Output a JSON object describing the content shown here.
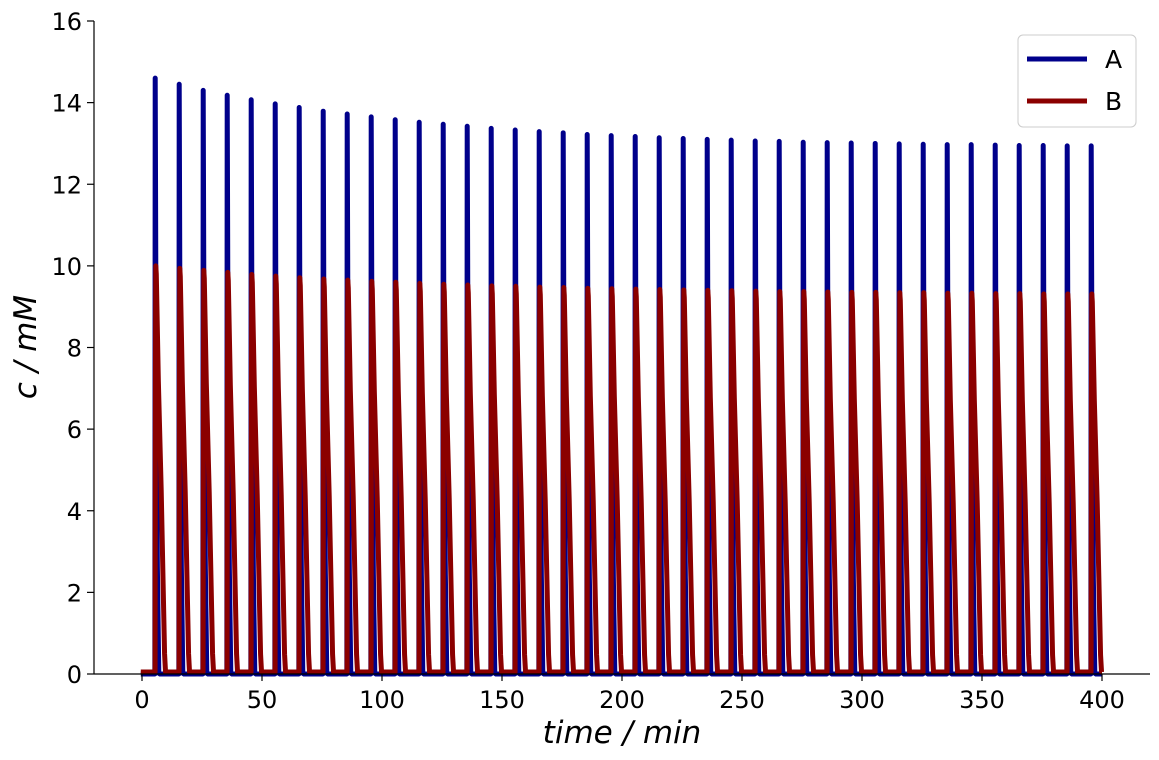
{
  "chart_data": {
    "type": "line",
    "title": "",
    "xlabel": "time / min",
    "ylabel": "c / mM",
    "xlim": [
      -20,
      420
    ],
    "ylim": [
      0,
      16
    ],
    "xticks": [
      0,
      50,
      100,
      150,
      200,
      250,
      300,
      350,
      400
    ],
    "yticks": [
      0,
      2,
      4,
      6,
      8,
      10,
      12,
      14,
      16
    ],
    "legend_position": "top-right",
    "grid": false,
    "series": [
      {
        "name": "A",
        "color": "#00008B",
        "pulse_times": [
          5.5,
          15.5,
          25.5,
          35.5,
          45.5,
          55.5,
          65.5,
          75.5,
          85.5,
          95.5,
          105.5,
          115.5,
          125.5,
          135.5,
          145.5,
          155.5,
          165.5,
          175.5,
          185.5,
          195.5,
          205.5,
          215.5,
          225.5,
          235.5,
          245.5,
          255.5,
          265.5,
          275.5,
          285.5,
          295.5,
          305.5,
          315.5,
          325.5,
          335.5,
          345.5,
          355.5,
          365.5,
          375.5,
          385.5,
          395.5
        ],
        "peak_values": [
          14.6,
          14.45,
          14.3,
          14.18,
          14.07,
          13.97,
          13.88,
          13.79,
          13.72,
          13.65,
          13.58,
          13.52,
          13.47,
          13.42,
          13.37,
          13.33,
          13.29,
          13.26,
          13.22,
          13.19,
          13.17,
          13.14,
          13.12,
          13.1,
          13.08,
          13.06,
          13.05,
          13.03,
          13.02,
          13.01,
          13.0,
          12.99,
          12.98,
          12.97,
          12.97,
          12.96,
          12.95,
          12.95,
          12.94,
          12.94
        ],
        "baseline": 0.0
      },
      {
        "name": "B",
        "color": "#8B0000",
        "pulse_times": [
          5.5,
          15.5,
          25.5,
          35.5,
          45.5,
          55.5,
          65.5,
          75.5,
          85.5,
          95.5,
          105.5,
          115.5,
          125.5,
          135.5,
          145.5,
          155.5,
          165.5,
          175.5,
          185.5,
          195.5,
          205.5,
          215.5,
          225.5,
          235.5,
          245.5,
          255.5,
          265.5,
          275.5,
          285.5,
          295.5,
          305.5,
          315.5,
          325.5,
          335.5,
          345.5,
          355.5,
          365.5,
          375.5,
          385.5,
          395.5
        ],
        "peak_values": [
          10.0,
          9.94,
          9.89,
          9.84,
          9.79,
          9.75,
          9.71,
          9.68,
          9.65,
          9.62,
          9.6,
          9.57,
          9.55,
          9.53,
          9.51,
          9.5,
          9.48,
          9.47,
          9.45,
          9.44,
          9.43,
          9.42,
          9.41,
          9.4,
          9.39,
          9.38,
          9.37,
          9.37,
          9.36,
          9.35,
          9.35,
          9.34,
          9.34,
          9.33,
          9.33,
          9.32,
          9.32,
          9.31,
          9.31,
          9.31
        ],
        "baseline": 0.05
      }
    ]
  }
}
